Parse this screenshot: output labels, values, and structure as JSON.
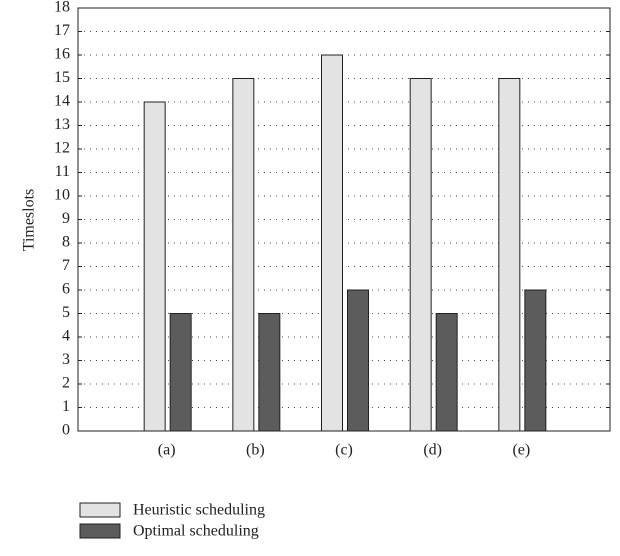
{
  "chart_data": {
    "type": "bar",
    "y_label": "Timeslots",
    "categories": [
      "(a)",
      "(b)",
      "(c)",
      "(d)",
      "(e)"
    ],
    "series": [
      {
        "name": "Heuristic scheduling",
        "color": "#e3e3e3",
        "values": [
          14,
          15,
          16,
          15,
          15
        ]
      },
      {
        "name": "Optimal scheduling",
        "color": "#5c5c5c",
        "values": [
          5,
          5,
          6,
          5,
          6
        ]
      }
    ],
    "ylim": [
      0,
      18
    ],
    "yticks": [
      0,
      1,
      2,
      3,
      4,
      5,
      6,
      7,
      8,
      9,
      10,
      11,
      12,
      13,
      14,
      15,
      16,
      17,
      18
    ],
    "grid": true,
    "legend": "bottom-left"
  }
}
